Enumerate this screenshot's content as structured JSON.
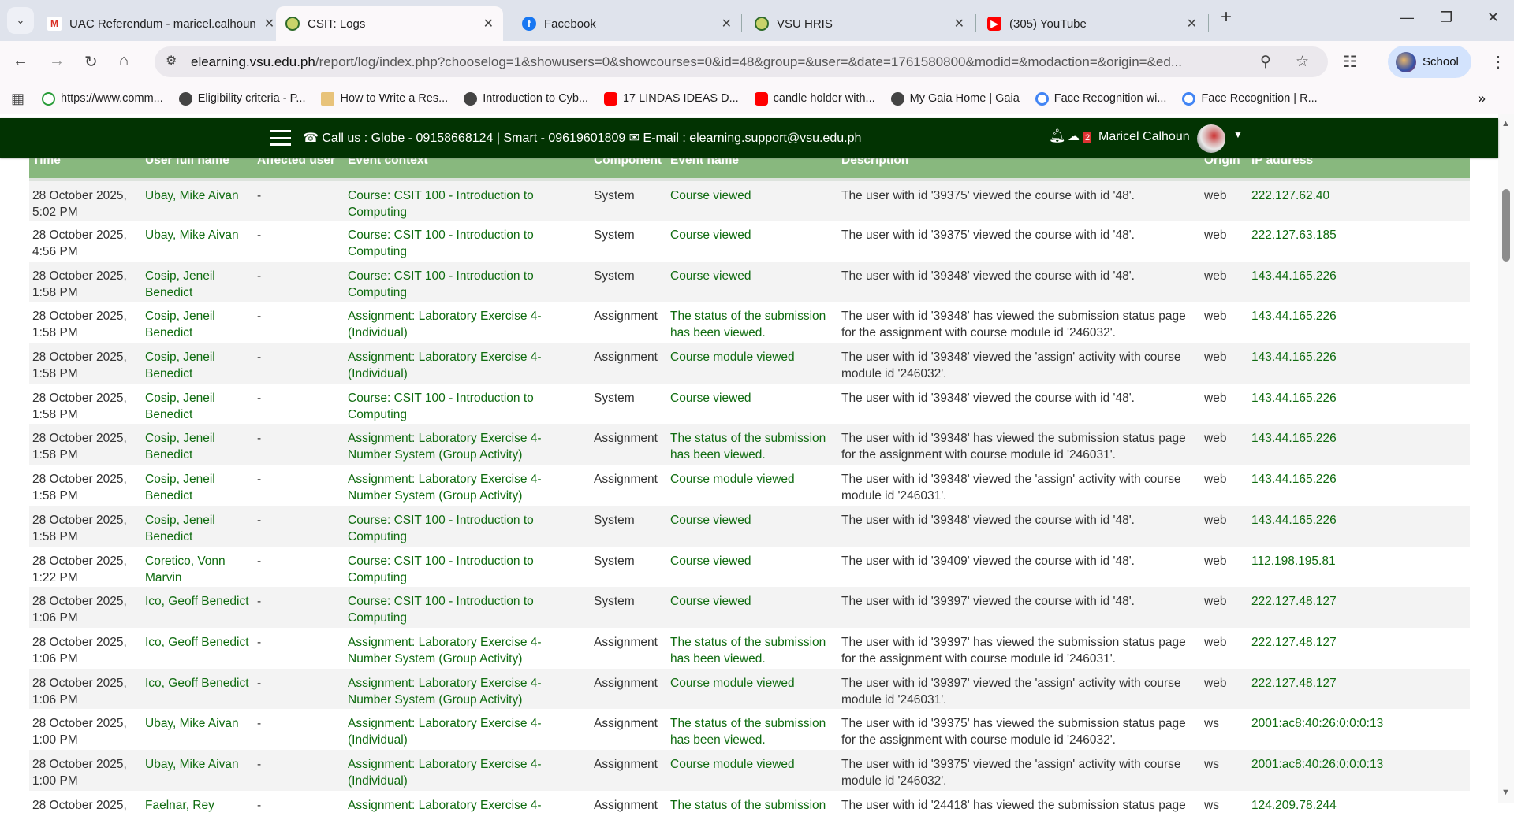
{
  "browser": {
    "tabs": [
      {
        "title": "UAC Referendum - maricel.calhoun",
        "icon": "gmail-icon",
        "active": false
      },
      {
        "title": "CSIT: Logs",
        "icon": "vsu-logo-icon",
        "active": true
      },
      {
        "title": "Facebook",
        "icon": "facebook-icon",
        "active": false
      },
      {
        "title": "VSU HRIS",
        "icon": "vsu-logo-icon",
        "active": false
      },
      {
        "title": "(305) YouTube",
        "icon": "youtube-icon",
        "active": false
      }
    ],
    "url_domain": "elearning.vsu.edu.ph",
    "url_path": "/report/log/index.php?chooselog=1&showusers=0&showcourses=0&id=48&group=&user=&date=1761580800&modid=&modaction=&origin=&ed...",
    "profile_label": "School",
    "bookmarks": [
      {
        "label": "https://www.comm...",
        "icon": "check-circle-icon"
      },
      {
        "label": "Eligibility criteria - P...",
        "icon": "globe-icon"
      },
      {
        "label": "How to Write a Res...",
        "icon": "book-icon"
      },
      {
        "label": "Introduction to Cyb...",
        "icon": "globe-icon"
      },
      {
        "label": "17 LINDAS IDEAS D...",
        "icon": "youtube-icon"
      },
      {
        "label": "candle holder with...",
        "icon": "youtube-icon"
      },
      {
        "label": "My Gaia Home | Gaia",
        "icon": "globe-icon"
      },
      {
        "label": "Face Recognition wi...",
        "icon": "google-icon"
      },
      {
        "label": "Face Recognition | R...",
        "icon": "google-icon"
      }
    ]
  },
  "site_header": {
    "contact": "☎ Call us : Globe - 09158668124 | Smart - 09619601809 ✉ E-mail : elearning.support@vsu.edu.ph",
    "message_count": "2",
    "user_name": "Maricel Calhoun"
  },
  "table": {
    "headers": [
      "Time",
      "User full name",
      "Affected user",
      "Event context",
      "Component",
      "Event name",
      "Description",
      "Origin",
      "IP address"
    ],
    "rows": [
      [
        "28 October 2025, 5:02 PM",
        "Ubay, Mike Aivan",
        "-",
        "Course: CSIT 100 - Introduction to Computing",
        "System",
        "Course viewed",
        "The user with id '39375' viewed the course with id '48'.",
        "web",
        "222.127.62.40"
      ],
      [
        "28 October 2025, 4:56 PM",
        "Ubay, Mike Aivan",
        "-",
        "Course: CSIT 100 - Introduction to Computing",
        "System",
        "Course viewed",
        "The user with id '39375' viewed the course with id '48'.",
        "web",
        "222.127.63.185"
      ],
      [
        "28 October 2025, 1:58 PM",
        "Cosip, Jeneil Benedict",
        "-",
        "Course: CSIT 100 - Introduction to Computing",
        "System",
        "Course viewed",
        "The user with id '39348' viewed the course with id '48'.",
        "web",
        "143.44.165.226"
      ],
      [
        "28 October 2025, 1:58 PM",
        "Cosip, Jeneil Benedict",
        "-",
        "Assignment: Laboratory Exercise 4- (Individual)",
        "Assignment",
        "The status of the submission has been viewed.",
        "The user with id '39348' has viewed the submission status page for the assignment with course module id '246032'.",
        "web",
        "143.44.165.226"
      ],
      [
        "28 October 2025, 1:58 PM",
        "Cosip, Jeneil Benedict",
        "-",
        "Assignment: Laboratory Exercise 4- (Individual)",
        "Assignment",
        "Course module viewed",
        "The user with id '39348' viewed the 'assign' activity with course module id '246032'.",
        "web",
        "143.44.165.226"
      ],
      [
        "28 October 2025, 1:58 PM",
        "Cosip, Jeneil Benedict",
        "-",
        "Course: CSIT 100 - Introduction to Computing",
        "System",
        "Course viewed",
        "The user with id '39348' viewed the course with id '48'.",
        "web",
        "143.44.165.226"
      ],
      [
        "28 October 2025, 1:58 PM",
        "Cosip, Jeneil Benedict",
        "-",
        "Assignment: Laboratory Exercise 4- Number System (Group Activity)",
        "Assignment",
        "The status of the submission has been viewed.",
        "The user with id '39348' has viewed the submission status page for the assignment with course module id '246031'.",
        "web",
        "143.44.165.226"
      ],
      [
        "28 October 2025, 1:58 PM",
        "Cosip, Jeneil Benedict",
        "-",
        "Assignment: Laboratory Exercise 4- Number System (Group Activity)",
        "Assignment",
        "Course module viewed",
        "The user with id '39348' viewed the 'assign' activity with course module id '246031'.",
        "web",
        "143.44.165.226"
      ],
      [
        "28 October 2025, 1:58 PM",
        "Cosip, Jeneil Benedict",
        "-",
        "Course: CSIT 100 - Introduction to Computing",
        "System",
        "Course viewed",
        "The user with id '39348' viewed the course with id '48'.",
        "web",
        "143.44.165.226"
      ],
      [
        "28 October 2025, 1:22 PM",
        "Coretico, Vonn Marvin",
        "-",
        "Course: CSIT 100 - Introduction to Computing",
        "System",
        "Course viewed",
        "The user with id '39409' viewed the course with id '48'.",
        "web",
        "112.198.195.81"
      ],
      [
        "28 October 2025, 1:06 PM",
        "Ico, Geoff Benedict",
        "-",
        "Course: CSIT 100 - Introduction to Computing",
        "System",
        "Course viewed",
        "The user with id '39397' viewed the course with id '48'.",
        "web",
        "222.127.48.127"
      ],
      [
        "28 October 2025, 1:06 PM",
        "Ico, Geoff Benedict",
        "-",
        "Assignment: Laboratory Exercise 4- Number System (Group Activity)",
        "Assignment",
        "The status of the submission has been viewed.",
        "The user with id '39397' has viewed the submission status page for the assignment with course module id '246031'.",
        "web",
        "222.127.48.127"
      ],
      [
        "28 October 2025, 1:06 PM",
        "Ico, Geoff Benedict",
        "-",
        "Assignment: Laboratory Exercise 4- Number System (Group Activity)",
        "Assignment",
        "Course module viewed",
        "The user with id '39397' viewed the 'assign' activity with course module id '246031'.",
        "web",
        "222.127.48.127"
      ],
      [
        "28 October 2025, 1:00 PM",
        "Ubay, Mike Aivan",
        "-",
        "Assignment: Laboratory Exercise 4- (Individual)",
        "Assignment",
        "The status of the submission has been viewed.",
        "The user with id '39375' has viewed the submission status page for the assignment with course module id '246032'.",
        "ws",
        "2001:ac8:40:26:0:0:0:13"
      ],
      [
        "28 October 2025, 1:00 PM",
        "Ubay, Mike Aivan",
        "-",
        "Assignment: Laboratory Exercise 4- (Individual)",
        "Assignment",
        "Course module viewed",
        "The user with id '39375' viewed the 'assign' activity with course module id '246032'.",
        "ws",
        "2001:ac8:40:26:0:0:0:13"
      ],
      [
        "28 October 2025,",
        "Faelnar, Rey",
        "-",
        "Assignment: Laboratory Exercise 4-",
        "Assignment",
        "The status of the submission",
        "The user with id '24418' has viewed the submission status page",
        "ws",
        "124.209.78.244"
      ]
    ]
  },
  "colors": {
    "site_header": "#023302",
    "table_header": "#88b87e",
    "link": "#0f6b0f"
  }
}
